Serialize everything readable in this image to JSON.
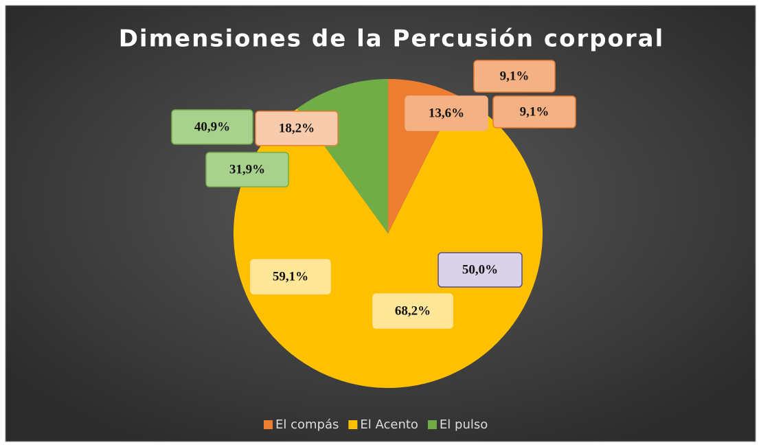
{
  "chart_data": {
    "type": "pie",
    "title": "Dimensiones de la Percusión corporal",
    "categories": [
      "El compás",
      "El Acento",
      "El pulso"
    ],
    "values": [
      7.4,
      82.6,
      10.0
    ],
    "colors": [
      "#ed7d31",
      "#ffc000",
      "#70ad47"
    ],
    "legend": "bottom",
    "annotations": [
      "9,1%",
      "13,6%",
      "9,1%",
      "40,9%",
      "18,2%",
      "31,9%",
      "59,1%",
      "50,0%",
      "68,2%"
    ]
  }
}
